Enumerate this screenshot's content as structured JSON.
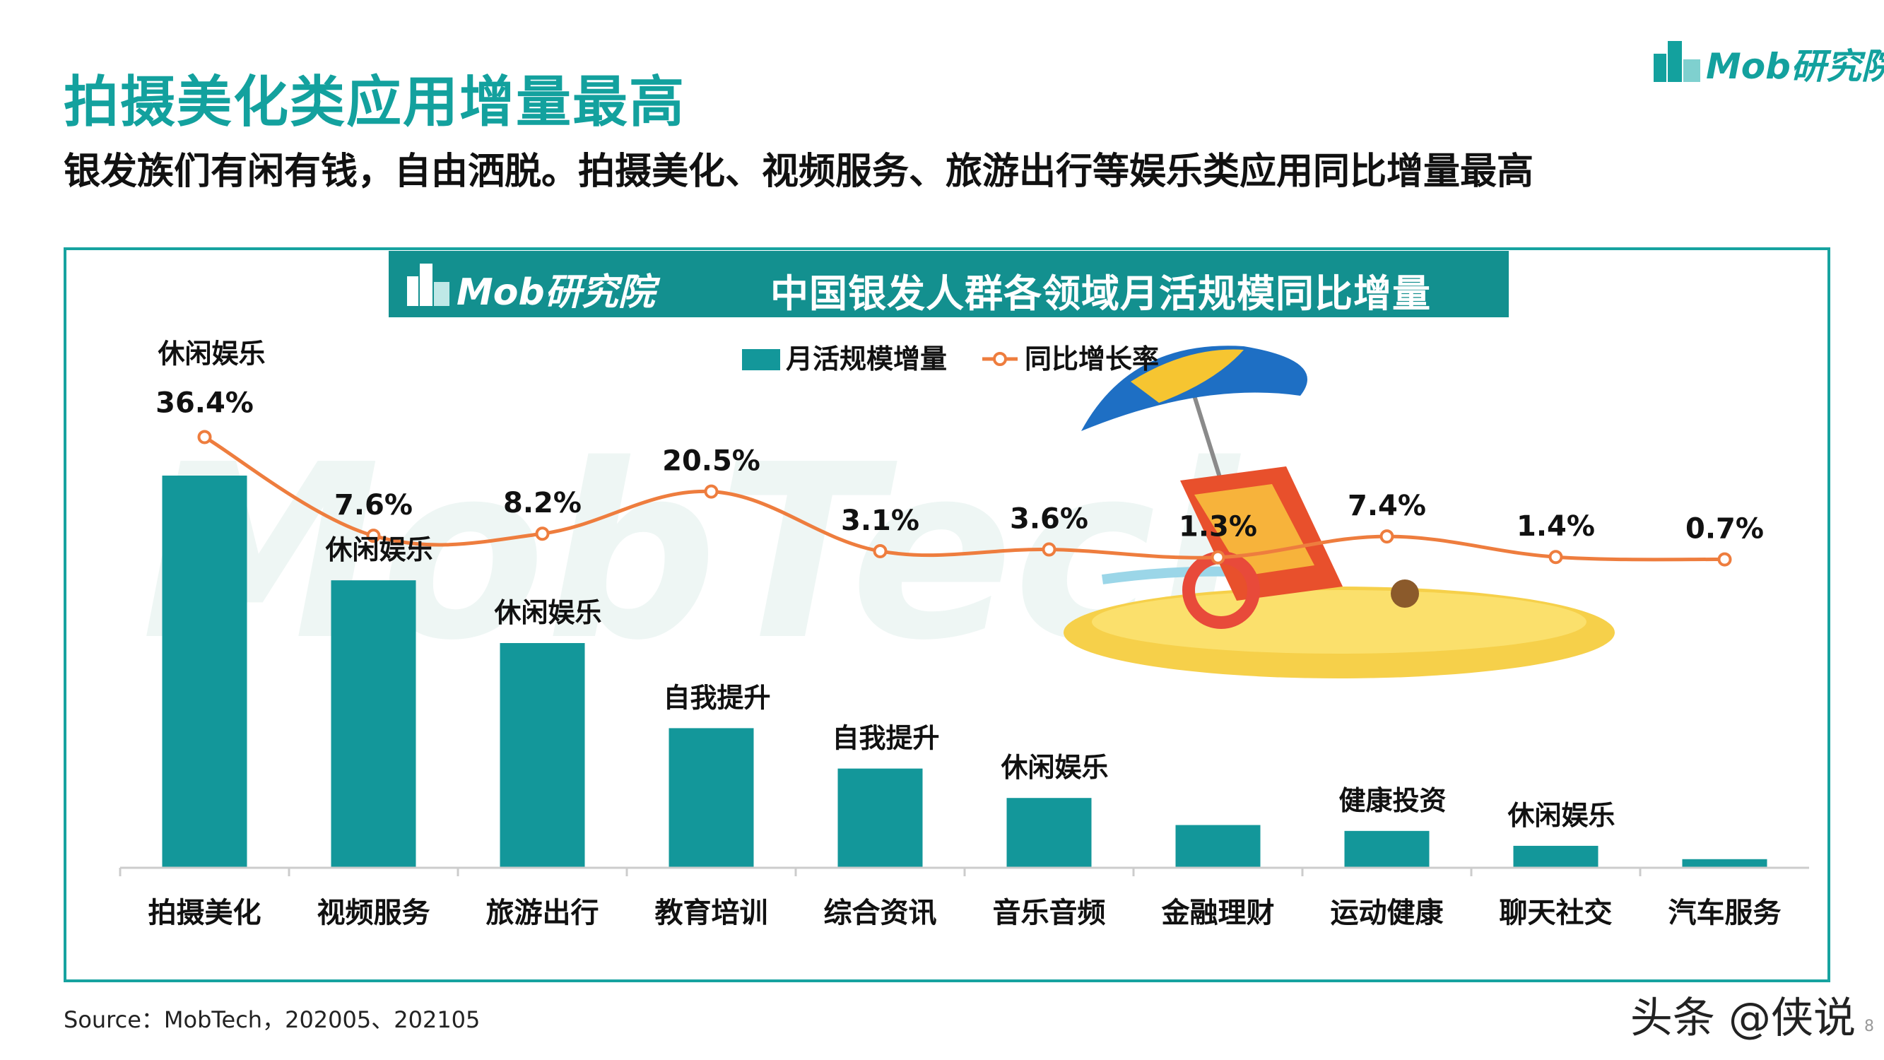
{
  "header": {
    "title": "拍摄美化类应用增量最高",
    "subtitle": "银发族们有闲有钱，自由洒脱。拍摄美化、视频服务、旅游出行等娱乐类应用同比增量最高",
    "logo_text": "Mob研究院"
  },
  "banner": {
    "logo_text": "Mob研究院",
    "title": "中国银发人群各领域月活规模同比增量"
  },
  "footer": {
    "source": "Source：MobTech，202005、202105",
    "credit": "头条 @侠说",
    "page_number": "8"
  },
  "colors": {
    "bar": "#13979a",
    "line": "#ee7d3e",
    "accent": "#13a19e"
  },
  "chart_data": {
    "type": "bar",
    "title": "中国银发人群各领域月活规模同比增量",
    "categories": [
      "拍摄美化",
      "视频服务",
      "旅游出行",
      "教育培训",
      "综合资讯",
      "音乐音频",
      "金融理财",
      "运动健康",
      "聊天社交",
      "汽车服务"
    ],
    "domains": [
      "休闲娱乐",
      "休闲娱乐",
      "休闲娱乐",
      "自我提升",
      "自我提升",
      "休闲娱乐",
      "",
      "健康投资",
      "休闲娱乐",
      ""
    ],
    "legend": [
      "月活规模增量",
      "同比增长率"
    ],
    "legend_position": "top-center",
    "grid": false,
    "series": [
      {
        "name": "月活规模增量",
        "type": "bar",
        "values": [
          100,
          73.3,
          57.3,
          35.6,
          25.3,
          17.8,
          10.9,
          9.4,
          5.6,
          2.2
        ]
      },
      {
        "name": "同比增长率",
        "type": "line",
        "values": [
          36.4,
          7.6,
          8.2,
          20.5,
          3.1,
          3.6,
          1.3,
          7.4,
          1.4,
          0.7
        ],
        "labels": [
          "36.4%",
          "7.6%",
          "8.2%",
          "20.5%",
          "3.1%",
          "3.6%",
          "1.3%",
          "7.4%",
          "1.4%",
          "0.7%"
        ]
      }
    ]
  }
}
